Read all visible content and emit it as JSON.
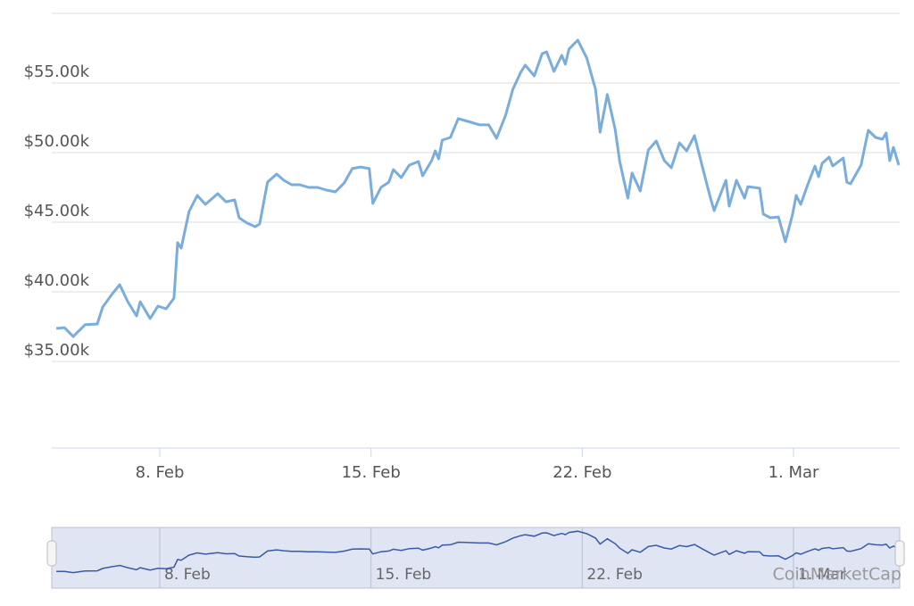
{
  "chart_data": {
    "type": "line",
    "color": "#7aaddc",
    "x": [
      4.57,
      4.84,
      5.13,
      5.52,
      5.93,
      6.11,
      6.41,
      6.67,
      6.94,
      7.23,
      7.35,
      7.68,
      7.94,
      8.21,
      8.47,
      8.59,
      8.71,
      8.97,
      9.24,
      9.51,
      9.92,
      10.19,
      10.48,
      10.63,
      10.89,
      11.16,
      11.31,
      11.57,
      11.87,
      12.11,
      12.37,
      12.64,
      12.93,
      13.23,
      13.52,
      13.82,
      14.11,
      14.38,
      14.65,
      14.94,
      15.06,
      15.33,
      15.59,
      15.74,
      16.0,
      16.27,
      16.57,
      16.71,
      17.01,
      17.13,
      17.24,
      17.36,
      17.63,
      17.89,
      18.31,
      18.6,
      18.9,
      19.16,
      19.46,
      19.7,
      19.96,
      20.11,
      20.41,
      20.67,
      20.82,
      21.06,
      21.32,
      21.44,
      21.56,
      21.85,
      22.15,
      22.44,
      22.59,
      22.83,
      23.09,
      23.24,
      23.51,
      23.65,
      23.92,
      24.19,
      24.45,
      24.72,
      24.95,
      25.22,
      25.46,
      25.72,
      25.99,
      26.25,
      26.37,
      26.61,
      26.76,
      26.87,
      27.11,
      27.38,
      27.49,
      27.88,
      28.0,
      28.23,
      28.5,
      28.73,
      28.97,
      29.09,
      29.24,
      29.47,
      29.71,
      29.83,
      29.95,
      30.18,
      30.3,
      30.65,
      30.77,
      30.89,
      31.24,
      31.36,
      31.48,
      31.72,
      31.95,
      32.07,
      32.19,
      32.31,
      32.49
    ],
    "values": [
      37370,
      37430,
      36790,
      37630,
      37690,
      38910,
      39810,
      40510,
      39290,
      38270,
      39290,
      38080,
      38970,
      38780,
      39550,
      43530,
      43140,
      45770,
      46920,
      46280,
      47050,
      46470,
      46600,
      45320,
      44940,
      44680,
      44870,
      47880,
      48460,
      48010,
      47690,
      47690,
      47500,
      47500,
      47310,
      47180,
      47820,
      48850,
      48970,
      48850,
      46350,
      47500,
      47880,
      48780,
      48200,
      49100,
      49360,
      48330,
      49420,
      50130,
      49550,
      50900,
      51090,
      52440,
      52180,
      51990,
      51990,
      51030,
      52690,
      54550,
      55770,
      56280,
      55510,
      57110,
      57240,
      55830,
      56990,
      56350,
      57440,
      58080,
      56790,
      54550,
      51470,
      54170,
      51670,
      49360,
      46730,
      48530,
      47240,
      50190,
      50830,
      49420,
      48910,
      50700,
      50130,
      51220,
      48910,
      46730,
      45830,
      47180,
      48010,
      46150,
      48010,
      46730,
      47560,
      47440,
      45580,
      45320,
      45380,
      43590,
      45580,
      46920,
      46280,
      47690,
      49040,
      48270,
      49230,
      49680,
      49040,
      49610,
      47880,
      47760,
      49100,
      50380,
      51600,
      51090,
      50960,
      51410,
      49420,
      50380,
      49100
    ],
    "xlim": [
      4.42,
      32.52
    ],
    "xticks": [
      {
        "value": 8,
        "label": "8. Feb"
      },
      {
        "value": 15,
        "label": "15. Feb"
      },
      {
        "value": 22,
        "label": "22. Feb"
      },
      {
        "value": 29,
        "label": "1. Mar"
      }
    ],
    "ylim": [
      28780,
      60000
    ],
    "yticks": [
      {
        "value": 35000,
        "label": "$35.00k"
      },
      {
        "value": 40000,
        "label": "$40.00k"
      },
      {
        "value": 45000,
        "label": "$45.00k"
      },
      {
        "value": 50000,
        "label": "$50.00k"
      },
      {
        "value": 55000,
        "label": "$55.00k"
      }
    ],
    "grid": true,
    "credit": "CoinMarketCap"
  }
}
